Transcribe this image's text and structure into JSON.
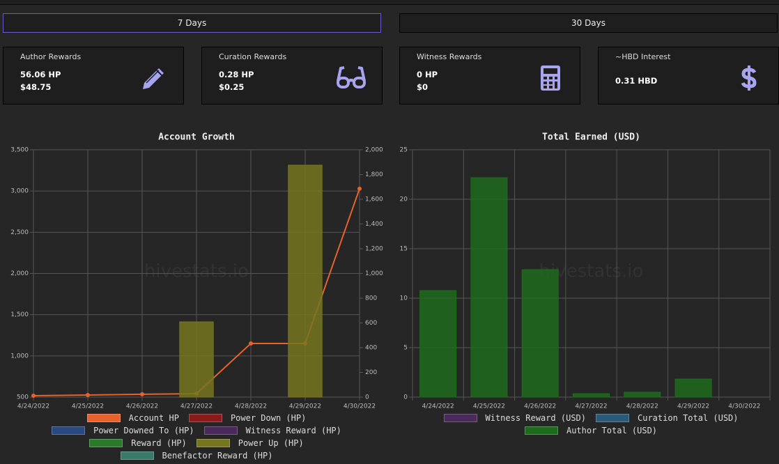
{
  "tabs": [
    "7 Days",
    "30 Days"
  ],
  "cards": [
    {
      "title": "Author Rewards",
      "lines": [
        "56.06 HP",
        "$48.75"
      ]
    },
    {
      "title": "Curation Rewards",
      "lines": [
        "0.28 HP",
        "$0.25"
      ]
    },
    {
      "title": "Witness Rewards",
      "lines": [
        "0 HP",
        "$0"
      ]
    },
    {
      "title": "~HBD Interest",
      "lines": [
        "0.31 HBD"
      ]
    }
  ],
  "chart_data": [
    {
      "type": "bar",
      "title": "Account Growth",
      "watermark": "hivestats.io",
      "categories": [
        "4/24/2022",
        "4/25/2022",
        "4/26/2022",
        "4/27/2022",
        "4/28/2022",
        "4/29/2022",
        "4/30/2022"
      ],
      "ylim": [
        500,
        3500
      ],
      "yticks": [
        500,
        {
          "value": 1000,
          "label": "1,000"
        },
        {
          "value": 1500,
          "label": "1,500"
        },
        {
          "value": 2000,
          "label": "2,000"
        },
        {
          "value": 2500,
          "label": "2,500"
        },
        {
          "value": 3000,
          "label": "3,000"
        },
        {
          "value": 3500,
          "label": "3,500"
        }
      ],
      "y2lim": [
        0,
        2000
      ],
      "y2ticks": [
        0,
        200,
        400,
        600,
        800,
        {
          "value": 1000,
          "label": "1,000"
        },
        {
          "value": 1200,
          "label": "1,200"
        },
        {
          "value": 1400,
          "label": "1,400"
        },
        {
          "value": 1600,
          "label": "1,600"
        },
        {
          "value": 1800,
          "label": "1,800"
        },
        {
          "value": 2000,
          "label": "2,000"
        }
      ],
      "grid": true,
      "series": [
        {
          "name": "Account HP",
          "type": "line",
          "axis": "y2",
          "color": "#e8622c",
          "values": [
            11,
            17,
            23,
            28,
            434,
            434,
            1685
          ]
        },
        {
          "name": "Power Down (HP)",
          "color": "#8b1a1a",
          "values": [
            null,
            null,
            null,
            null,
            null,
            null,
            null
          ]
        },
        {
          "name": "Power Downed To (HP)",
          "color": "#2a4a7f",
          "values": [
            null,
            null,
            null,
            null,
            null,
            null,
            null
          ]
        },
        {
          "name": "Witness Reward (HP)",
          "color": "#4a2a5a",
          "values": [
            null,
            null,
            null,
            null,
            null,
            null,
            null
          ]
        },
        {
          "name": "Reward (HP)",
          "color": "#2a7a2a",
          "values": [
            null,
            null,
            null,
            null,
            null,
            null,
            null
          ]
        },
        {
          "name": "Power Up (HP)",
          "color": "#76761f",
          "values": [
            null,
            null,
            null,
            1413,
            null,
            3314,
            null
          ]
        },
        {
          "name": "Benefactor Reward (HP)",
          "color": "#3a7a6a",
          "values": [
            null,
            null,
            null,
            null,
            null,
            null,
            null
          ]
        }
      ]
    },
    {
      "type": "bar",
      "title": "Total Earned (USD)",
      "watermark": "hivestats.io",
      "categories": [
        "4/24/2022",
        "4/25/2022",
        "4/26/2022",
        "4/27/2022",
        "4/28/2022",
        "4/29/2022",
        "4/30/2022"
      ],
      "ylim": [
        0,
        25
      ],
      "yticks": [
        0,
        5,
        10,
        15,
        20,
        25
      ],
      "grid": true,
      "series": [
        {
          "name": "Witness Reward (USD)",
          "color": "#4a2a5a",
          "values": [
            null,
            null,
            null,
            null,
            null,
            null,
            null
          ]
        },
        {
          "name": "Curation Total (USD)",
          "color": "#2a5a7a",
          "values": [
            null,
            null,
            null,
            null,
            null,
            null,
            null
          ]
        },
        {
          "name": "Author Total (USD)",
          "color": "#1e6b1e",
          "values": [
            10.77,
            22.18,
            12.89,
            0.35,
            0.5,
            1.83,
            0
          ]
        }
      ]
    }
  ]
}
